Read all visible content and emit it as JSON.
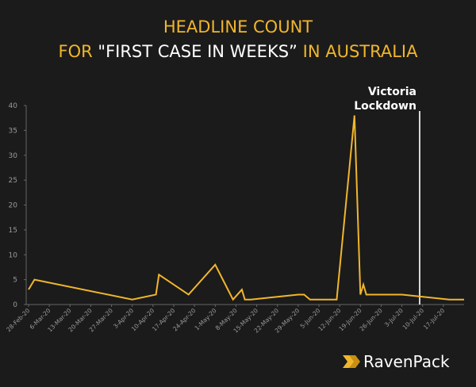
{
  "chart_data": {
    "type": "line",
    "title": [
      "HEADLINE COUNT",
      "FOR",
      "\"FIRST CASE IN WEEKS”",
      "IN AUSTRALIA"
    ],
    "x": [
      "2020-02-28",
      "2020-03-01",
      "2020-04-03",
      "2020-04-11",
      "2020-04-12",
      "2020-04-22",
      "2020-05-01",
      "2020-05-07",
      "2020-05-10",
      "2020-05-11",
      "2020-05-13",
      "2020-05-29",
      "2020-05-31",
      "2020-06-02",
      "2020-06-11",
      "2020-06-17",
      "2020-06-19",
      "2020-06-20",
      "2020-06-21",
      "2020-07-03",
      "2020-07-19",
      "2020-07-24"
    ],
    "series": [
      {
        "name": "Headline count",
        "color": "#f0b62c",
        "values": [
          3,
          5,
          1,
          2,
          6,
          2,
          8,
          1,
          3,
          1,
          1,
          2,
          2,
          1,
          1,
          38,
          2,
          4,
          2,
          2,
          1,
          1
        ]
      }
    ],
    "xlim": [
      "2020-02-28",
      "2020-07-24"
    ],
    "xticks": [
      {
        "value": "2020-02-28",
        "label": "28-Feb-20"
      },
      {
        "value": "2020-03-06",
        "label": "6-Mar-20"
      },
      {
        "value": "2020-03-13",
        "label": "13-Mar-20"
      },
      {
        "value": "2020-03-20",
        "label": "20-Mar-20"
      },
      {
        "value": "2020-03-27",
        "label": "27-Mar-20"
      },
      {
        "value": "2020-04-03",
        "label": "3-Apr-20"
      },
      {
        "value": "2020-04-10",
        "label": "10-Apr-20"
      },
      {
        "value": "2020-04-17",
        "label": "17-Apr-20"
      },
      {
        "value": "2020-04-24",
        "label": "24-Apr-20"
      },
      {
        "value": "2020-05-01",
        "label": "1-May-20"
      },
      {
        "value": "2020-05-08",
        "label": "8-May-20"
      },
      {
        "value": "2020-05-15",
        "label": "15-May-20"
      },
      {
        "value": "2020-05-22",
        "label": "22-May-20"
      },
      {
        "value": "2020-05-29",
        "label": "29-May-20"
      },
      {
        "value": "2020-06-05",
        "label": "5-Jun-20"
      },
      {
        "value": "2020-06-12",
        "label": "12-Jun-20"
      },
      {
        "value": "2020-06-19",
        "label": "19-Jun-20"
      },
      {
        "value": "2020-06-26",
        "label": "26-Jun-20"
      },
      {
        "value": "2020-07-03",
        "label": "3-Jul-20"
      },
      {
        "value": "2020-07-10",
        "label": "10-Jul-20"
      },
      {
        "value": "2020-07-17",
        "label": "17-Jul-20"
      }
    ],
    "ylim": [
      0,
      40
    ],
    "yticks": [
      0,
      5,
      10,
      15,
      20,
      25,
      30,
      35,
      40
    ],
    "annotations": [
      {
        "x": "2020-07-09",
        "text": [
          "Victoria",
          "Lockdown"
        ]
      }
    ]
  },
  "logo": "RavenPack"
}
